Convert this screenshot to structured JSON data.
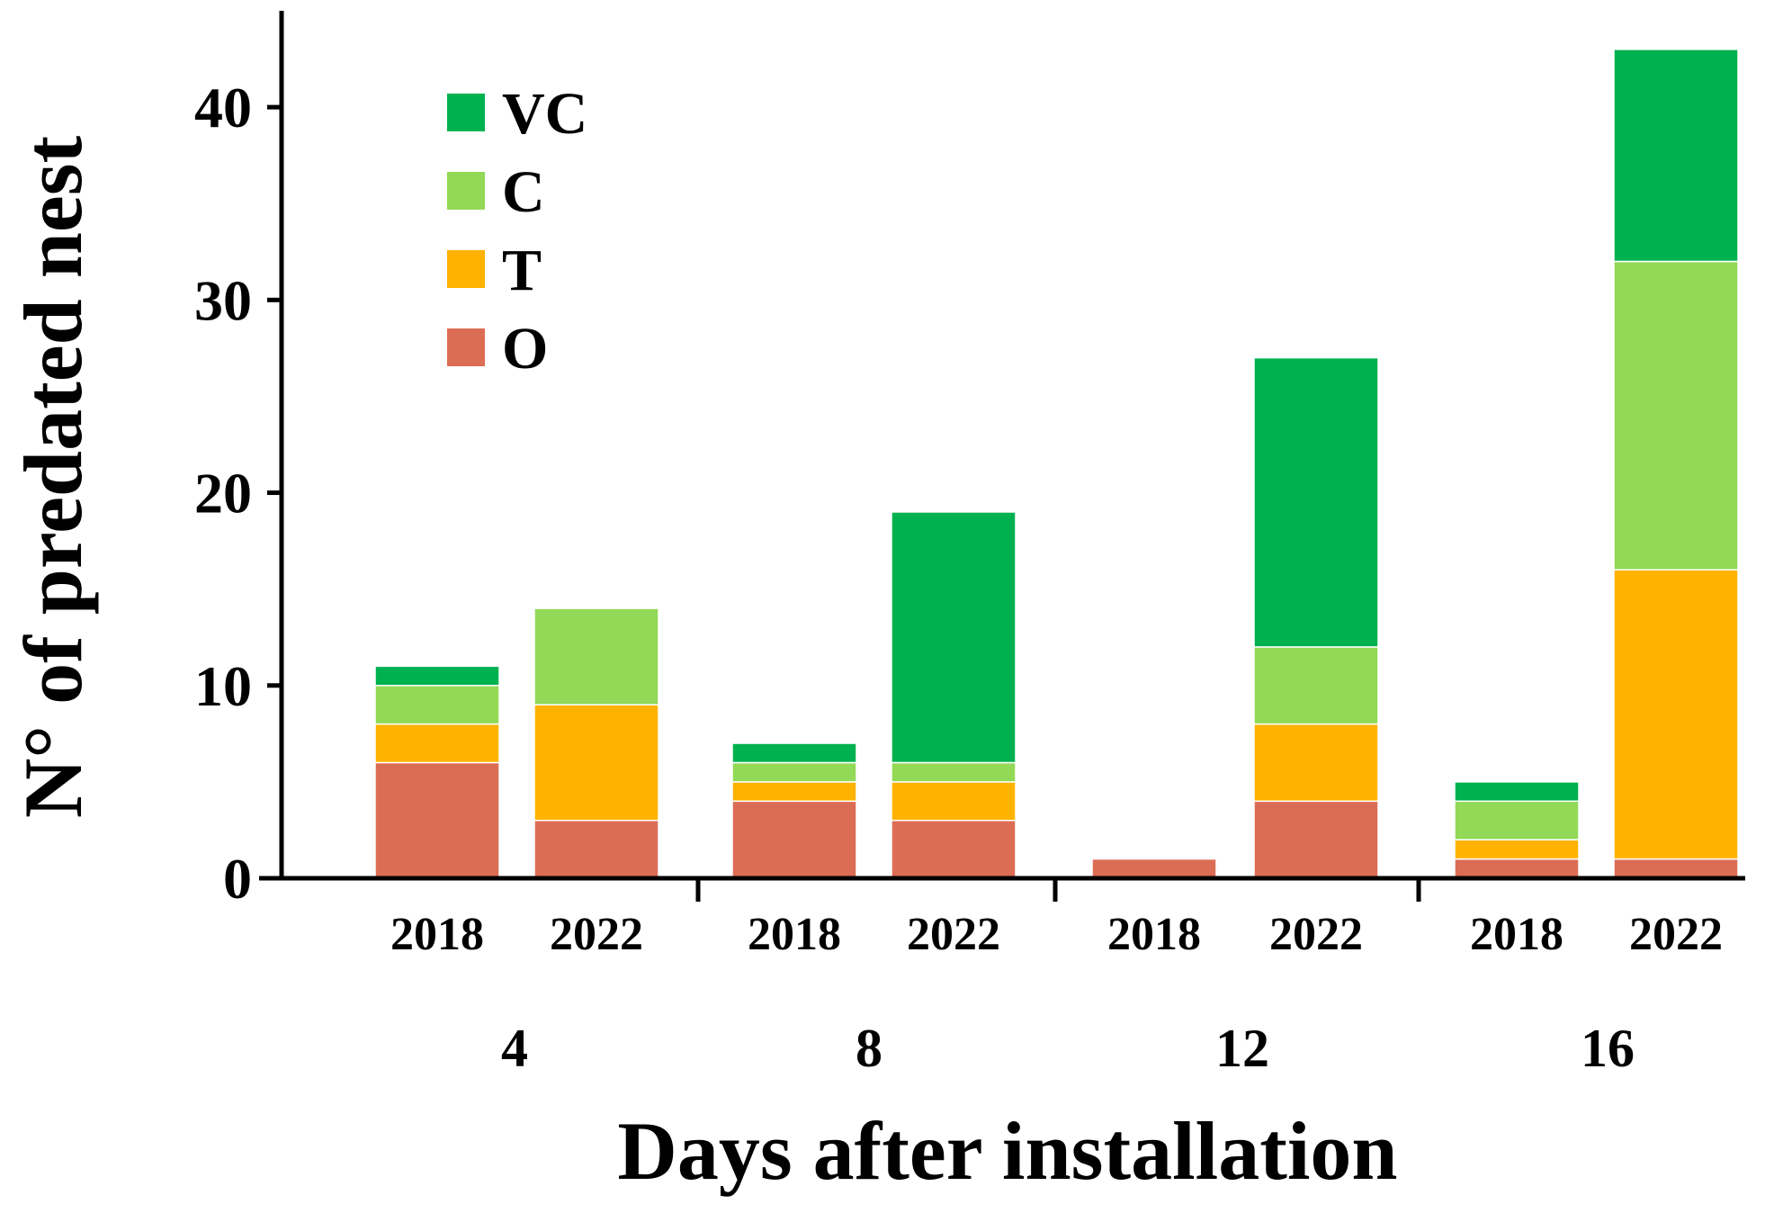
{
  "chart_data": {
    "type": "bar",
    "stacked": true,
    "title": "",
    "xlabel": "Days after installation",
    "ylabel": "N° of predated nest",
    "ylim": [
      0,
      45
    ],
    "yticks": [
      0,
      10,
      20,
      30,
      40
    ],
    "legend_position": "top-left",
    "groups": [
      "4",
      "8",
      "12",
      "16"
    ],
    "categories": [
      "2018",
      "2022",
      "2018",
      "2022",
      "2018",
      "2022",
      "2018",
      "2022"
    ],
    "series": [
      {
        "name": "O",
        "color": "#dc6d55",
        "values": [
          6,
          3,
          4,
          3,
          1,
          4,
          1,
          1
        ]
      },
      {
        "name": "T",
        "color": "#ffb300",
        "values": [
          2,
          6,
          1,
          2,
          0,
          4,
          1,
          15
        ]
      },
      {
        "name": "C",
        "color": "#92d957",
        "values": [
          2,
          5,
          1,
          1,
          0,
          4,
          2,
          16
        ]
      },
      {
        "name": "VC",
        "color": "#00b14f",
        "values": [
          1,
          0,
          1,
          13,
          0,
          15,
          1,
          11
        ]
      }
    ],
    "legend_order": [
      "VC",
      "C",
      "T",
      "O"
    ]
  }
}
